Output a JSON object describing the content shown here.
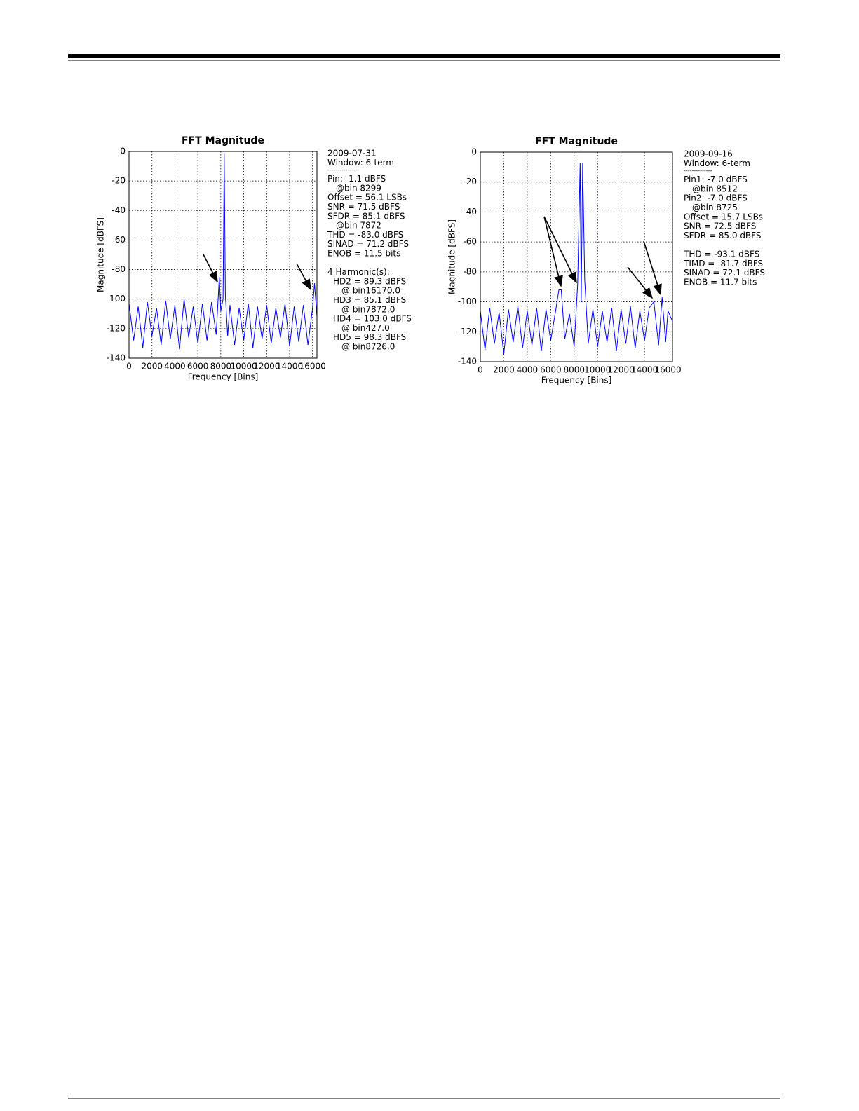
{
  "chart_data": [
    {
      "type": "line",
      "title": "FFT Magnitude",
      "xlabel": "Frequency [Bins]",
      "ylabel": "Magnitude [dBFS]",
      "color": "#0000ff",
      "grid": true,
      "xlim": [
        0,
        16384
      ],
      "ylim": [
        -140,
        0
      ],
      "xticks": [
        0,
        2000,
        4000,
        6000,
        8000,
        10000,
        12000,
        14000,
        16000
      ],
      "yticks": [
        0,
        -20,
        -40,
        -60,
        -80,
        -100,
        -120,
        -140
      ],
      "x": [
        0,
        400,
        800,
        1200,
        1600,
        2000,
        2400,
        2800,
        3200,
        3600,
        4000,
        4400,
        4800,
        5200,
        5600,
        6000,
        6400,
        6800,
        7200,
        7600,
        7872,
        8000,
        8200,
        8299,
        8400,
        8600,
        8800,
        9200,
        9600,
        10000,
        10400,
        10800,
        11200,
        11600,
        12000,
        12400,
        12800,
        13200,
        13600,
        14000,
        14400,
        14800,
        15200,
        15600,
        16000,
        16170,
        16384
      ],
      "values": [
        -103,
        -128,
        -105,
        -133,
        -102,
        -125,
        -106,
        -131,
        -101,
        -127,
        -104,
        -134,
        -100,
        -126,
        -105,
        -130,
        -103,
        -128,
        -102,
        -124,
        -85.1,
        -108,
        -100,
        -1.1,
        -97,
        -125,
        -104,
        -131,
        -106,
        -128,
        -103,
        -133,
        -105,
        -127,
        -104,
        -130,
        -106,
        -126,
        -103,
        -132,
        -105,
        -129,
        -104,
        -131,
        -106,
        -89.3,
        -112
      ],
      "notes": [
        [
          [
            "2009-07-31"
          ],
          [
            "Window: 6-term"
          ],
          [
            "--------------"
          ],
          [
            "Pin: -1.1 dBFS",
            "@bin 8299"
          ],
          [
            "Offset = 56.1 LSBs"
          ],
          [
            "SNR = 71.5 dBFS"
          ],
          [
            "SFDR = 85.1 dBFS",
            "@bin 7872"
          ],
          [
            "THD = -83.0 dBFS"
          ],
          [
            "SINAD = 71.2 dBFS"
          ],
          [
            "ENOB = 11.5 bits"
          ]
        ],
        [
          [
            "4 Harmonic(s):"
          ],
          [
            "HD2 = 89.3 dBFS",
            "@ bin16170.0"
          ],
          [
            "HD3 = 85.1 dBFS",
            "@ bin7872.0"
          ],
          [
            "HD4 = 103.0 dBFS",
            "@ bin427.0"
          ],
          [
            "HD5 = 98.3 dBFS",
            "@ bin8726.0"
          ]
        ]
      ]
    },
    {
      "type": "line",
      "title": "FFT Magnitude",
      "xlabel": "Frequency [Bins]",
      "ylabel": "Magnitude [dBFS]",
      "color": "#0000ff",
      "grid": true,
      "xlim": [
        0,
        16384
      ],
      "ylim": [
        -140,
        0
      ],
      "xticks": [
        0,
        2000,
        4000,
        6000,
        8000,
        10000,
        12000,
        14000,
        16000
      ],
      "yticks": [
        0,
        -20,
        -40,
        -60,
        -80,
        -100,
        -120,
        -140
      ],
      "x": [
        0,
        400,
        800,
        1200,
        1600,
        2000,
        2400,
        2800,
        3200,
        3600,
        4000,
        4400,
        4800,
        5200,
        5600,
        6000,
        6400,
        6700,
        6900,
        7200,
        7600,
        8000,
        8300,
        8512,
        8600,
        8725,
        8900,
        9200,
        9600,
        10000,
        10400,
        10800,
        11200,
        11600,
        12000,
        12400,
        12800,
        13200,
        13600,
        14000,
        14400,
        14800,
        15200,
        15500,
        15800,
        16000,
        16384
      ],
      "values": [
        -106,
        -132,
        -104,
        -128,
        -107,
        -135,
        -105,
        -127,
        -103,
        -131,
        -106,
        -129,
        -104,
        -133,
        -105,
        -126,
        -107,
        -92,
        -92,
        -125,
        -108,
        -130,
        -88,
        -7,
        -100,
        -7,
        -85,
        -128,
        -105,
        -130,
        -106,
        -127,
        -104,
        -133,
        -105,
        -128,
        -103,
        -131,
        -106,
        -126,
        -104,
        -100,
        -129,
        -97,
        -127,
        -106,
        -113
      ],
      "notes": [
        [
          [
            "2009-09-16"
          ],
          [
            "Window: 6-term"
          ],
          [
            "--------------"
          ],
          [
            "Pin1: -7.0 dBFS",
            "@bin 8512"
          ],
          [
            "Pin2: -7.0 dBFS",
            "@bin 8725"
          ],
          [
            "Offset = 15.7 LSBs"
          ],
          [
            "SNR = 72.5 dBFS"
          ],
          [
            "SFDR = 85.0 dBFS"
          ]
        ],
        [
          [
            "THD = -93.1 dBFS"
          ],
          [
            "TIMD = -81.7 dBFS"
          ],
          [
            "SINAD = 72.1 dBFS"
          ],
          [
            "ENOB = 11.7 bits"
          ]
        ]
      ]
    }
  ]
}
